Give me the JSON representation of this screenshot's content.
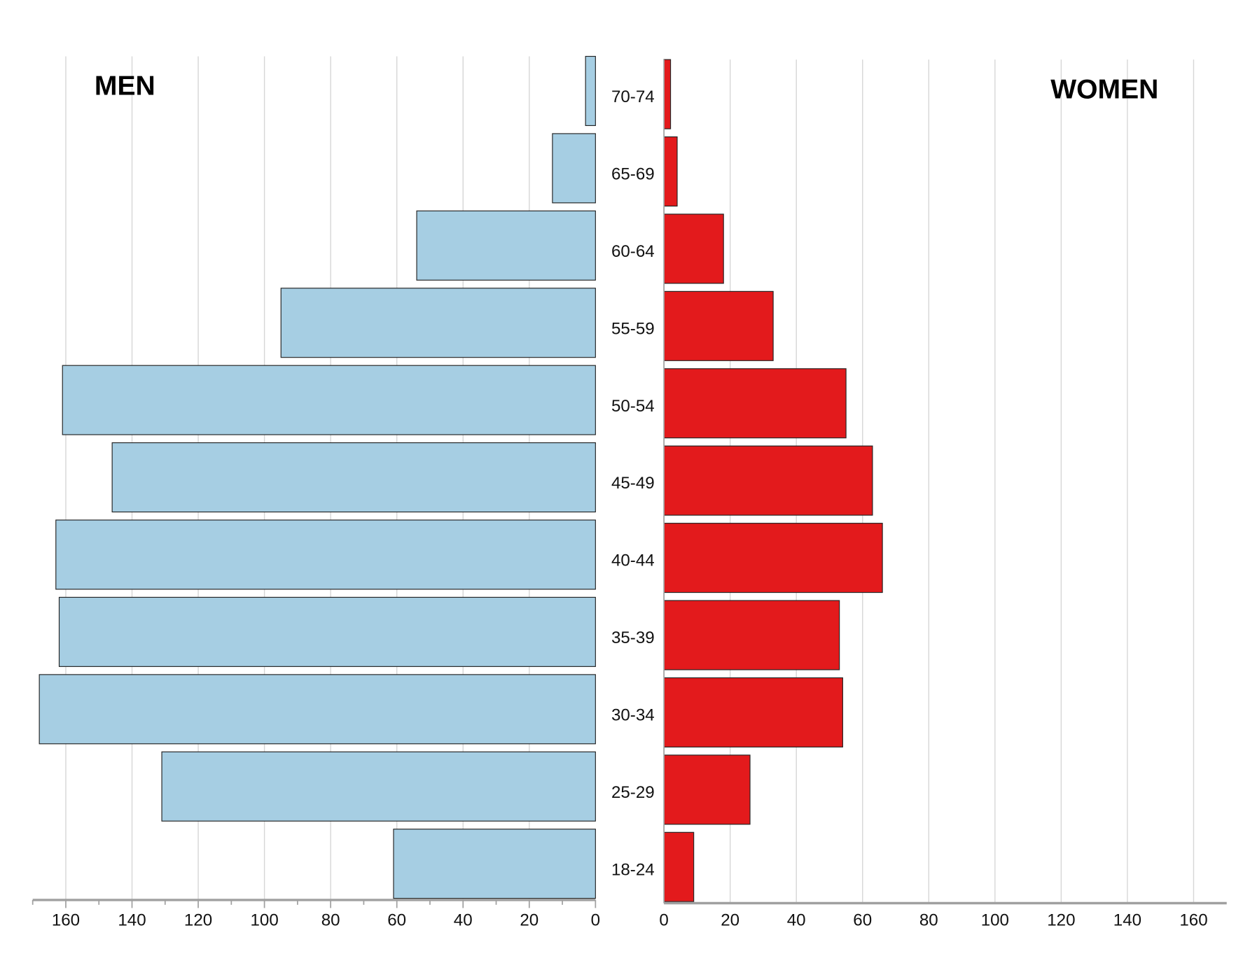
{
  "chart_data": {
    "type": "bar",
    "orientation": "horizontal",
    "subtype": "population-pyramid",
    "categories": [
      "70-74",
      "65-69",
      "60-64",
      "55-59",
      "50-54",
      "45-49",
      "40-44",
      "35-39",
      "30-34",
      "25-29",
      "18-24"
    ],
    "series": [
      {
        "name": "MEN",
        "side": "left",
        "color": "#a6cee3",
        "values": [
          3,
          13,
          54,
          95,
          161,
          146,
          163,
          162,
          168,
          131,
          61
        ]
      },
      {
        "name": "WOMEN",
        "side": "right",
        "color": "#e31a1c",
        "values": [
          2,
          4,
          18,
          33,
          55,
          63,
          66,
          53,
          54,
          26,
          9
        ]
      }
    ],
    "xlim": [
      0,
      170
    ],
    "xticks": [
      0,
      20,
      40,
      60,
      80,
      100,
      120,
      140,
      160
    ],
    "grid": true,
    "labels": {
      "men": "MEN",
      "women": "WOMEN"
    }
  }
}
